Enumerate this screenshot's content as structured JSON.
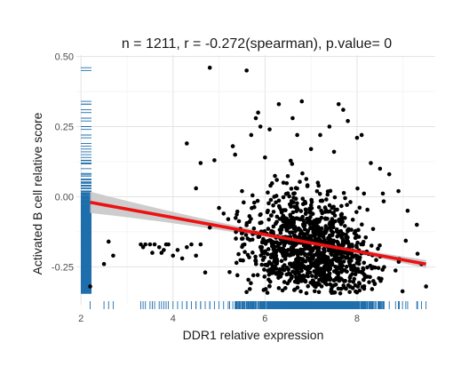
{
  "chart_data": {
    "type": "scatter",
    "title": "n = 1211, r = -0.272(spearman), p.value= 0",
    "xlabel": "DDR1 relative expression",
    "ylabel": "Activated B cell relative score",
    "xlim": [
      1.9,
      9.7
    ],
    "ylim": [
      -0.385,
      0.505
    ],
    "x_ticks": [
      2,
      4,
      6,
      8
    ],
    "x_tick_labels": [
      "2",
      "4",
      "6",
      "8"
    ],
    "y_ticks": [
      -0.25,
      0.0,
      0.25,
      0.5
    ],
    "y_tick_labels": [
      "-0.25",
      "0.00",
      "0.25",
      "0.50"
    ],
    "grid": true,
    "n": 1211,
    "r": -0.272,
    "method": "spearman",
    "p_value": 0,
    "point_color": "#000000",
    "rug_color": "#1f6fad",
    "fit_line": {
      "x": [
        2.2,
        9.5
      ],
      "y": [
        -0.02,
        -0.24
      ],
      "color": "#ee1111",
      "band_color": "#c8c8c8"
    },
    "rug": {
      "x_side": "bottom",
      "y_side": "left"
    },
    "points": [
      [
        2.2,
        -0.32
      ],
      [
        2.5,
        -0.24
      ],
      [
        2.6,
        -0.16
      ],
      [
        2.7,
        -0.21
      ],
      [
        3.3,
        -0.17
      ],
      [
        3.35,
        -0.18
      ],
      [
        3.4,
        -0.17
      ],
      [
        3.5,
        -0.17
      ],
      [
        3.55,
        -0.2
      ],
      [
        3.6,
        -0.17
      ],
      [
        3.7,
        -0.18
      ],
      [
        3.75,
        -0.2
      ],
      [
        3.8,
        -0.19
      ],
      [
        3.85,
        -0.17
      ],
      [
        3.9,
        -0.17
      ],
      [
        4.0,
        -0.21
      ],
      [
        4.1,
        -0.19
      ],
      [
        4.2,
        -0.22
      ],
      [
        4.3,
        -0.18
      ],
      [
        4.4,
        -0.17
      ],
      [
        4.5,
        -0.21
      ],
      [
        4.6,
        -0.17
      ],
      [
        4.7,
        -0.27
      ],
      [
        4.8,
        -0.11
      ],
      [
        4.3,
        0.19
      ],
      [
        4.5,
        0.03
      ],
      [
        4.6,
        0.12
      ],
      [
        4.8,
        0.46
      ],
      [
        4.9,
        0.13
      ],
      [
        5.0,
        -0.04
      ],
      [
        5.1,
        -0.06
      ],
      [
        5.2,
        -0.08
      ],
      [
        5.3,
        0.18
      ],
      [
        5.35,
        0.15
      ],
      [
        5.4,
        -0.28
      ],
      [
        5.5,
        0.02
      ],
      [
        5.6,
        0.45
      ],
      [
        5.7,
        0.22
      ],
      [
        5.8,
        0.28
      ],
      [
        5.85,
        0.3
      ],
      [
        5.9,
        0.25
      ],
      [
        6.0,
        0.14
      ],
      [
        6.1,
        0.24
      ],
      [
        6.2,
        0.0
      ],
      [
        6.3,
        0.33
      ],
      [
        6.4,
        0.05
      ],
      [
        6.6,
        0.28
      ],
      [
        6.7,
        0.22
      ],
      [
        6.8,
        0.34
      ],
      [
        7.0,
        0.17
      ],
      [
        7.2,
        0.22
      ],
      [
        7.4,
        0.25
      ],
      [
        7.5,
        0.16
      ],
      [
        7.6,
        0.33
      ],
      [
        7.7,
        0.31
      ],
      [
        7.8,
        0.27
      ],
      [
        8.0,
        0.21
      ],
      [
        8.1,
        0.22
      ],
      [
        8.3,
        0.12
      ],
      [
        8.5,
        0.1
      ],
      [
        8.7,
        0.08
      ],
      [
        8.9,
        0.02
      ],
      [
        9.1,
        -0.05
      ],
      [
        9.3,
        -0.1
      ],
      [
        9.5,
        -0.32
      ],
      [
        9.4,
        -0.24
      ]
    ]
  }
}
